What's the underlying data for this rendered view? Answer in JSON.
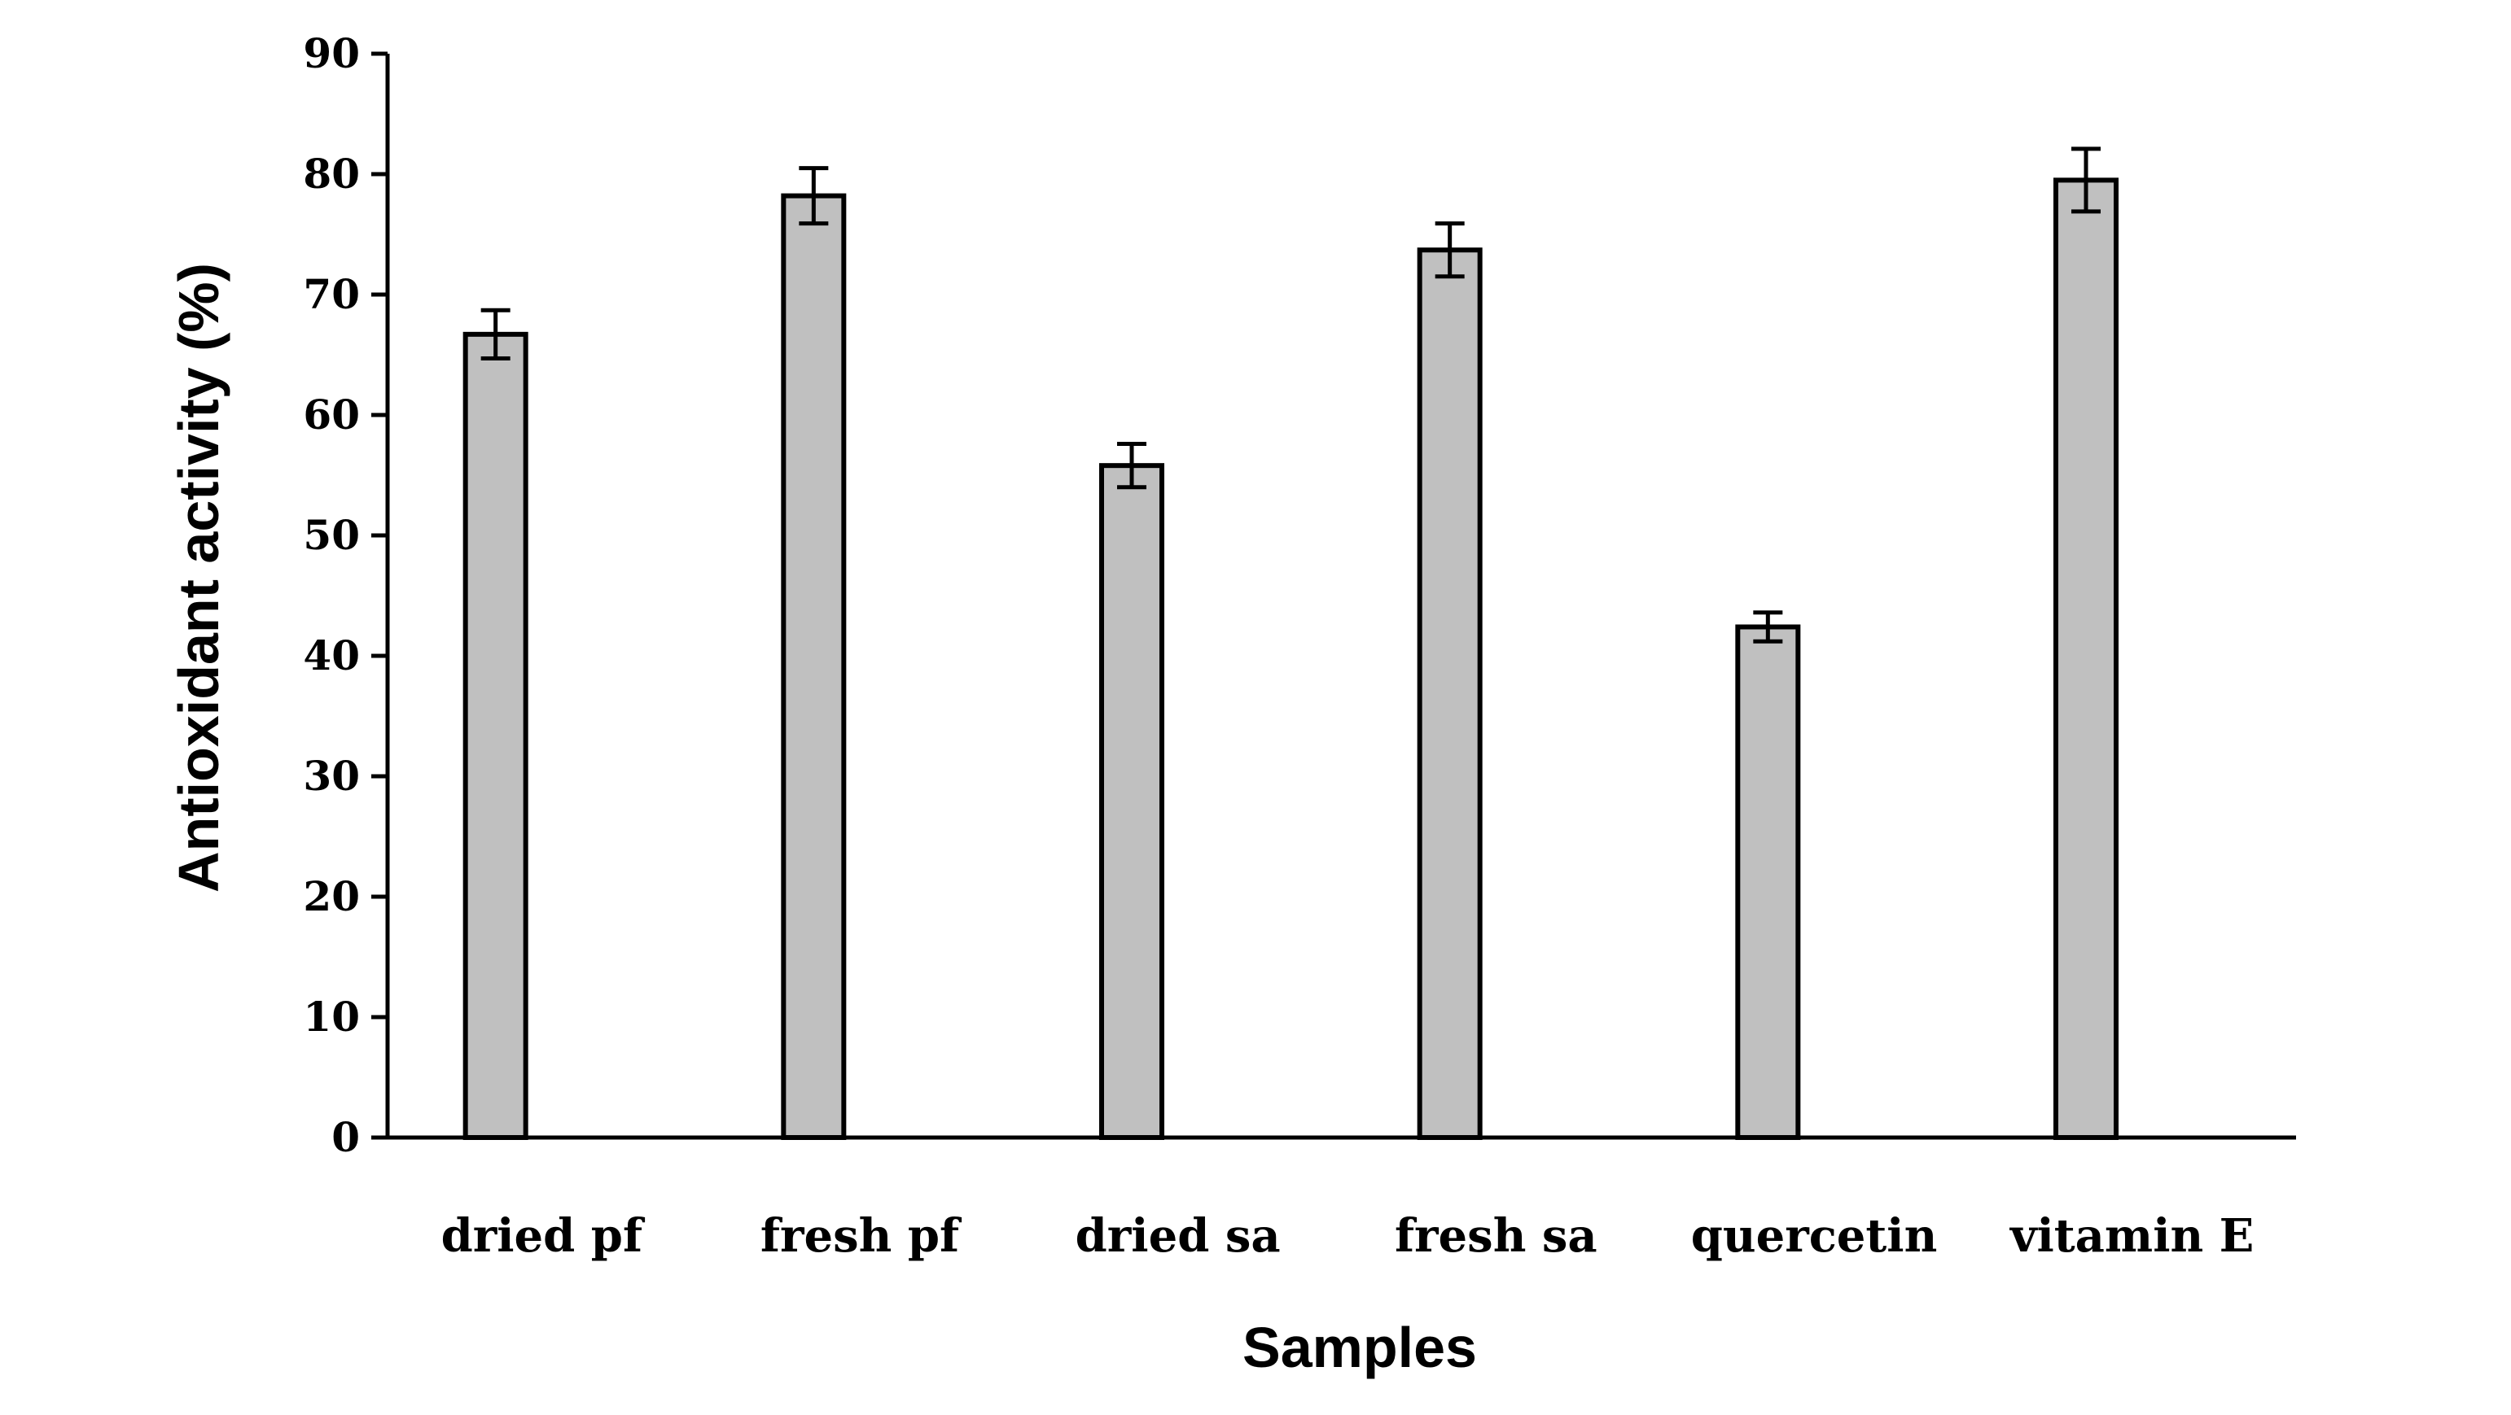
{
  "chart_data": {
    "type": "bar",
    "title": "",
    "xlabel": "Samples",
    "ylabel": "Antioxidant activity (%)",
    "categories": [
      "dried pf",
      "fresh pf",
      "dried sa",
      "fresh sa",
      "quercetin",
      "vitamin E"
    ],
    "series": [
      {
        "values": [
          66.7,
          78.2,
          55.8,
          73.7,
          42.4,
          79.5
        ],
        "errors": [
          2.0,
          2.3,
          1.8,
          2.2,
          1.2,
          2.6
        ]
      }
    ],
    "ylim": [
      0,
      90
    ],
    "yticks": [
      0,
      10,
      20,
      30,
      40,
      50,
      60,
      70,
      80,
      90
    ],
    "grid": false,
    "bar_color": "#c0c0c0",
    "bar_edge_color": "#000000"
  }
}
